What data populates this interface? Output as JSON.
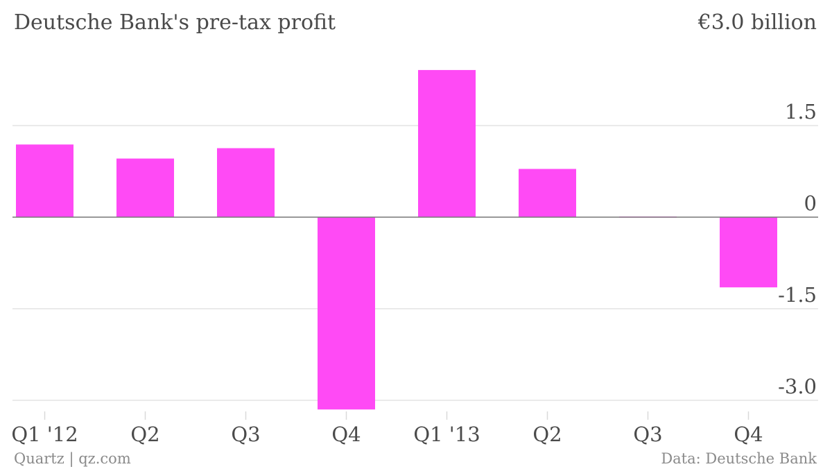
{
  "chart_data": {
    "type": "bar",
    "title": "Deutsche Bank's pre-tax profit",
    "top_tick_label": "€3.0 billion",
    "categories": [
      "Q1 '12",
      "Q2",
      "Q3",
      "Q4",
      "Q1 '13",
      "Q2",
      "Q3",
      "Q4"
    ],
    "values": [
      1.19,
      0.96,
      1.13,
      -3.15,
      2.41,
      0.79,
      0.01,
      -1.15
    ],
    "yticks": [
      {
        "value": 1.5,
        "label": "1.5"
      },
      {
        "value": 0,
        "label": "0"
      },
      {
        "value": -1.5,
        "label": "-1.5"
      },
      {
        "value": -3.0,
        "label": "-3.0"
      }
    ],
    "ylim": [
      -3.15,
      3.0
    ],
    "grid": true,
    "legend": "none",
    "bar_color": "#ff4af5"
  },
  "footer": {
    "source_left": "Quartz | qz.com",
    "source_right": "Data: Deutsche Bank"
  }
}
